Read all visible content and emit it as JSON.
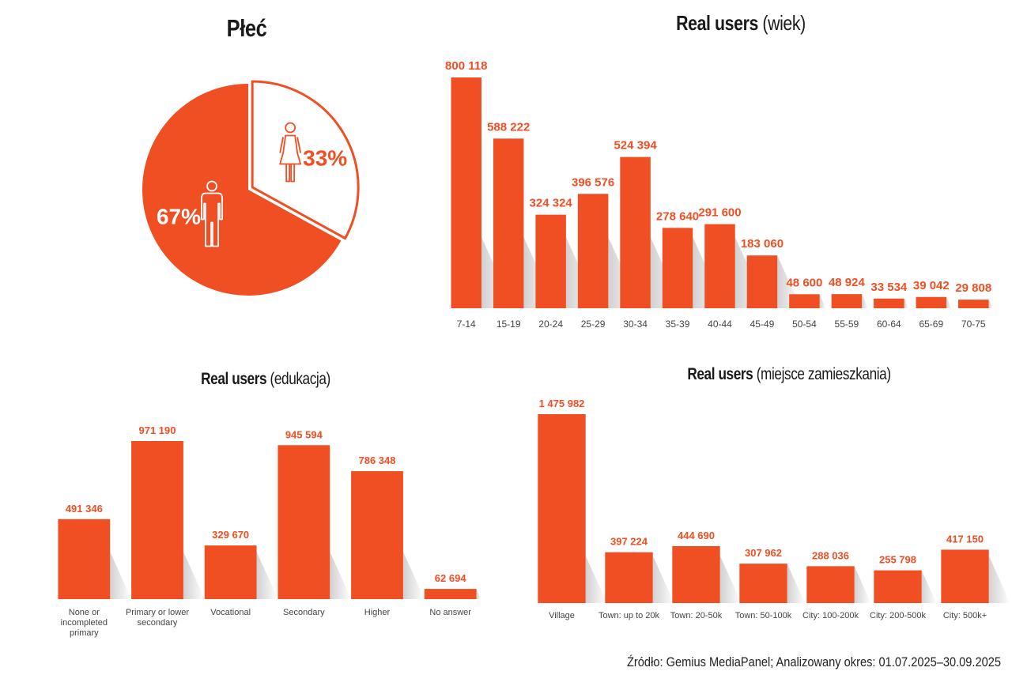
{
  "colors": {
    "accent": "#f04e23",
    "text": "#1a1a1a",
    "tick": "#444444"
  },
  "source": "Źródło: Gemius MediaPanel; Analizowany okres: 01.07.2025–30.09.2025",
  "chart_data": [
    {
      "id": "gender",
      "type": "pie",
      "title": "Płeć",
      "slices": [
        {
          "label": "33%",
          "value": 33,
          "icon": "woman-icon",
          "style": "outline"
        },
        {
          "label": "67%",
          "value": 67,
          "icon": "man-icon",
          "style": "filled"
        }
      ]
    },
    {
      "id": "age",
      "type": "bar",
      "title": "Real users",
      "subtitle": "(wiek)",
      "categories": [
        "7-14",
        "15-19",
        "20-24",
        "25-29",
        "30-34",
        "35-39",
        "40-44",
        "45-49",
        "50-54",
        "55-59",
        "60-64",
        "65-69",
        "70-75"
      ],
      "values": [
        800118,
        588222,
        324324,
        396576,
        524394,
        278640,
        291600,
        183060,
        48600,
        48924,
        33534,
        39042,
        29808
      ],
      "value_labels": [
        "800 118",
        "588 222",
        "324 324",
        "396 576",
        "524 394",
        "278 640",
        "291 600",
        "183 060",
        "48 600",
        "48 924",
        "33 534",
        "39 042",
        "29 808"
      ],
      "ylim": [
        0,
        800118
      ]
    },
    {
      "id": "education",
      "type": "bar",
      "title": "Real users",
      "subtitle": "(edukacja)",
      "categories": [
        [
          "None or",
          "incompleted",
          "primary"
        ],
        [
          "Primary or lower",
          "secondary"
        ],
        [
          "Vocational"
        ],
        [
          "Secondary"
        ],
        [
          "Higher"
        ],
        [
          "No answer"
        ]
      ],
      "values": [
        491346,
        971190,
        329670,
        945594,
        786348,
        62694
      ],
      "value_labels": [
        "491 346",
        "971 190",
        "329 670",
        "945 594",
        "786 348",
        "62 694"
      ],
      "ylim": [
        0,
        971190
      ]
    },
    {
      "id": "residence",
      "type": "bar",
      "title": "Real users",
      "subtitle": "(miejsce zamieszkania)",
      "categories": [
        [
          "Village"
        ],
        [
          "Town: up to 20k"
        ],
        [
          "Town: 20-50k"
        ],
        [
          "Town: 50-100k"
        ],
        [
          "City: 100-200k"
        ],
        [
          "City: 200-500k"
        ],
        [
          "City: 500k+"
        ]
      ],
      "values": [
        1475982,
        397224,
        444690,
        307962,
        288036,
        255798,
        417150
      ],
      "value_labels": [
        "1 475 982",
        "397 224",
        "444 690",
        "307 962",
        "288 036",
        "255 798",
        "417 150"
      ],
      "ylim": [
        0,
        1475982
      ]
    }
  ]
}
